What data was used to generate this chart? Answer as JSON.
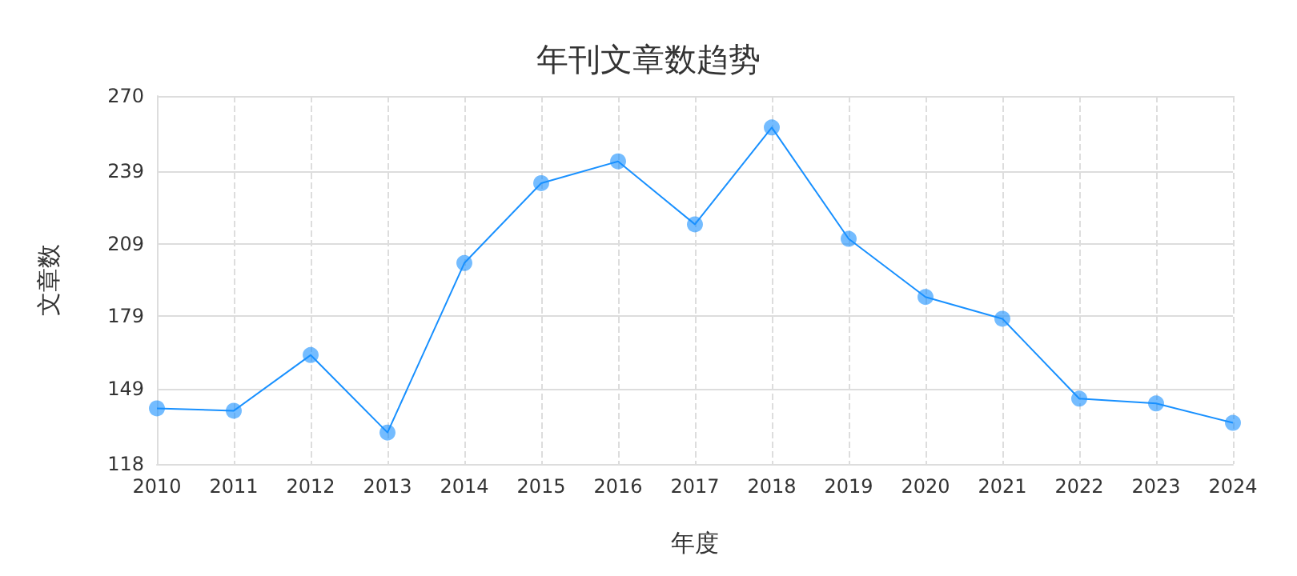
{
  "chart_data": {
    "type": "line",
    "title": "年刊文章数趋势",
    "xlabel": "年度",
    "ylabel": "文章数",
    "categories": [
      "2010",
      "2011",
      "2012",
      "2013",
      "2014",
      "2015",
      "2016",
      "2017",
      "2018",
      "2019",
      "2020",
      "2021",
      "2022",
      "2023",
      "2024"
    ],
    "series": [
      {
        "color": "#1890ff",
        "values": [
          141,
          140,
          163,
          131,
          201,
          234,
          243,
          217,
          257,
          211,
          187,
          178,
          145,
          143,
          135
        ]
      }
    ],
    "ylim": [
      118,
      270
    ],
    "yticks": [
      118,
      149,
      179,
      209,
      239,
      270
    ],
    "grid": true,
    "marker": "circle",
    "line_style": "solid"
  }
}
